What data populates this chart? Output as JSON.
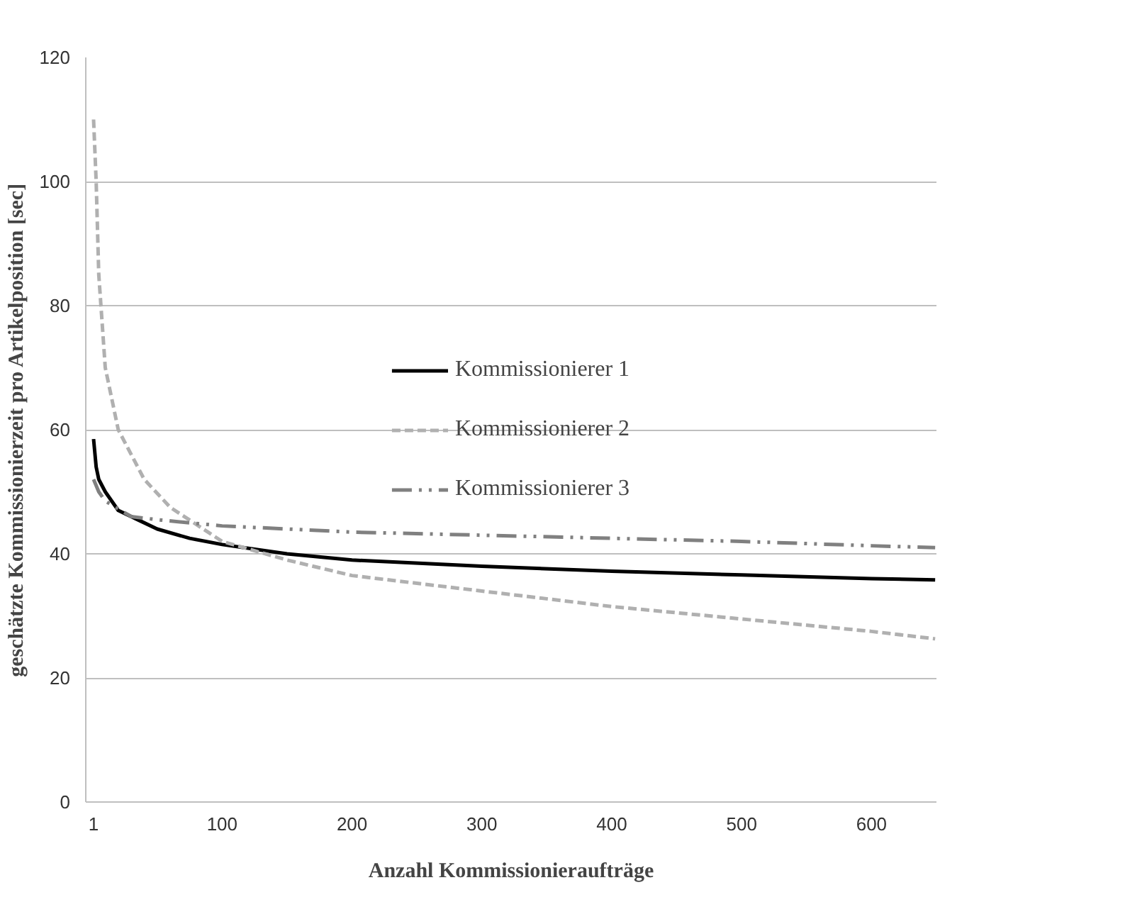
{
  "chart_data": {
    "type": "line",
    "xlabel": "Anzahl Kommissionieraufträge",
    "ylabel": "geschätzte Kommissionierzeit pro Artikelposition [sec]",
    "xlim": [
      -5,
      650
    ],
    "xticks": [
      1,
      100,
      200,
      300,
      400,
      500,
      600
    ],
    "ylim": [
      0,
      120
    ],
    "yticks": [
      0,
      20,
      40,
      60,
      80,
      100,
      120
    ],
    "grid": "y",
    "legend": "center",
    "series": [
      {
        "name": "Kommissionierer 1",
        "color": "#000000",
        "line_style": "solid",
        "x": [
          1,
          3,
          5,
          10,
          20,
          35,
          50,
          75,
          100,
          150,
          200,
          300,
          400,
          500,
          600,
          649
        ],
        "values": [
          58.5,
          54,
          52,
          50,
          47,
          45.5,
          44,
          42.5,
          41.5,
          40,
          39,
          38,
          37.2,
          36.6,
          36,
          35.8
        ]
      },
      {
        "name": "Kommissionierer 2",
        "color": "#b0b0b0",
        "line_style": "dashed",
        "x": [
          1,
          3,
          5,
          10,
          20,
          40,
          60,
          100,
          150,
          200,
          300,
          400,
          500,
          600,
          649
        ],
        "values": [
          110,
          100,
          85,
          70,
          60,
          52,
          47.5,
          42,
          39,
          36.5,
          34,
          31.5,
          29.5,
          27.5,
          26.3
        ]
      },
      {
        "name": "Kommissionierer 3",
        "color": "#808080",
        "line_style": "dashdot",
        "x": [
          1,
          5,
          10,
          30,
          50,
          100,
          200,
          300,
          400,
          500,
          600,
          649
        ],
        "values": [
          52,
          50,
          48.5,
          46,
          45.5,
          44.5,
          43.5,
          43,
          42.5,
          42,
          41.3,
          41
        ]
      }
    ]
  }
}
